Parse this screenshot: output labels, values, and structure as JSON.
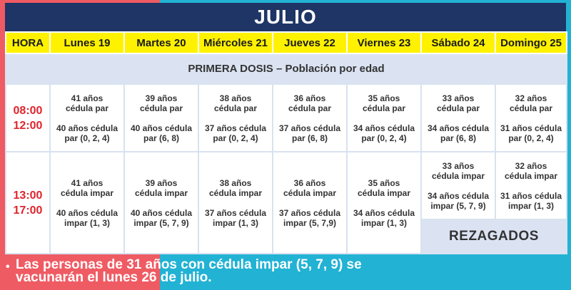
{
  "title": "JULIO",
  "headers": [
    "HORA",
    "Lunes 19",
    "Martes 20",
    "Miércoles 21",
    "Jueves 22",
    "Viernes 23",
    "Sábado 24",
    "Domingo 25"
  ],
  "subtitle": "PRIMERA DOSIS – Población por edad",
  "slots": [
    {
      "start": "08:00",
      "end": "12:00",
      "cells": [
        {
          "age": "41 años",
          "line2": "cédula par",
          "line3": "40 años cédula",
          "line4": "par (0, 2, 4)"
        },
        {
          "age": "39 años",
          "line2": "cédula par",
          "line3": "40 años cédula",
          "line4": "par (6, 8)"
        },
        {
          "age": "38 años",
          "line2": "cédula par",
          "line3": "37 años cédula",
          "line4": "par (0, 2, 4)"
        },
        {
          "age": "36 años",
          "line2": "cédula par",
          "line3": "37 años cédula",
          "line4": "par (6, 8)"
        },
        {
          "age": "35 años",
          "line2": "cédula par",
          "line3": "34 años cédula",
          "line4": "par (0, 2, 4)"
        },
        {
          "age": "33 años",
          "line2": "cédula par",
          "line3": "34 años cédula",
          "line4": "par (6, 8)"
        },
        {
          "age": "32 años",
          "line2": "cédula par",
          "line3": "31 años cédula",
          "line4": "par (0, 2, 4)"
        }
      ]
    },
    {
      "start": "13:00",
      "end": "17:00",
      "cells": [
        {
          "age": "41 años",
          "line2": "cédula impar",
          "line3": "40 años cédula",
          "line4": "impar (1, 3)"
        },
        {
          "age": "39 años",
          "line2": "cédula impar",
          "line3": "40 años cédula",
          "line4": "impar (5, 7, 9)"
        },
        {
          "age": "38 años",
          "line2": "cédula impar",
          "line3": "37 años cédula",
          "line4": "impar (1, 3)"
        },
        {
          "age": "36 años",
          "line2": "cédula impar",
          "line3": "37 años cédula",
          "line4": "impar (5, 7,9)"
        },
        {
          "age": "35 años",
          "line2": "cédula impar",
          "line3": "34 años cédula",
          "line4": "impar (1, 3)"
        },
        {
          "age": "33 años",
          "line2": "cédula impar",
          "line3": "34 años cédula",
          "line4": "impar (5, 7, 9)"
        },
        {
          "age": "32 años",
          "line2": "cédula impar",
          "line3": "31 años cédula",
          "line4": "impar (1, 3)"
        }
      ]
    }
  ],
  "rezagados": "REZAGADOS",
  "footer": {
    "bullet": "•",
    "line1": "Las personas de 31 años con cédula impar (5, 7, 9) se",
    "line2": "vacunarán el lunes 26 de julio."
  }
}
